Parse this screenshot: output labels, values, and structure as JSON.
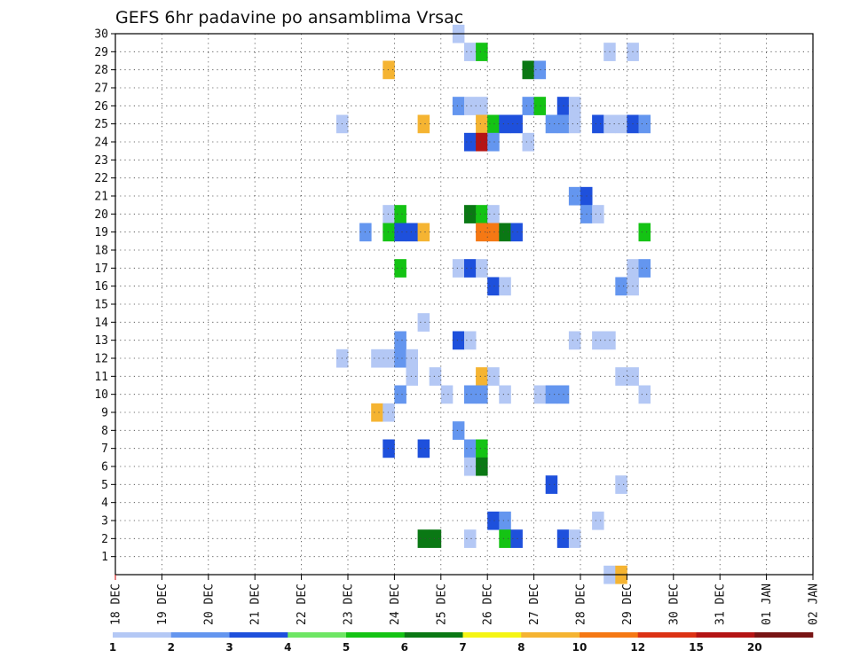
{
  "chart_data": {
    "type": "heatmap",
    "title": "GEFS 6hr padavine po ansamblima Vrsac",
    "xlabel": "",
    "ylabel": "",
    "x_ticks": [
      "18 DEC",
      "19 DEC",
      "20 DEC",
      "21 DEC",
      "22 DEC",
      "23 DEC",
      "24 DEC",
      "25 DEC",
      "26 DEC",
      "27 DEC",
      "28 DEC",
      "29 DEC",
      "30 DEC",
      "31 DEC",
      "01 JAN",
      "02 JAN"
    ],
    "y_ticks": [
      "1",
      "2",
      "3",
      "4",
      "5",
      "6",
      "7",
      "8",
      "9",
      "10",
      "11",
      "12",
      "13",
      "14",
      "15",
      "16",
      "17",
      "18",
      "19",
      "20",
      "21",
      "22",
      "23",
      "24",
      "25",
      "26",
      "27",
      "28",
      "29",
      "30"
    ],
    "ylim": [
      0,
      30
    ],
    "grid": true,
    "colorbar": {
      "labels": [
        "1",
        "2",
        "3",
        "4",
        "5",
        "6",
        "7",
        "8",
        "10",
        "12",
        "15",
        "20"
      ],
      "colors": [
        "#b4c8f5",
        "#6496ef",
        "#1e50dc",
        "#6ee664",
        "#14c314",
        "#0a7814",
        "#f5f514",
        "#f5b432",
        "#f57814",
        "#dc3214",
        "#b41414",
        "#781414"
      ]
    },
    "cell_legend": "cells: [day offset from 18 DEC (6h steps of 0.25), member, precipitation]",
    "cells": [
      [
        7.25,
        30,
        1.5
      ],
      [
        7.5,
        29,
        1.5
      ],
      [
        7.75,
        29,
        5
      ],
      [
        10.5,
        29,
        1.5
      ],
      [
        11,
        29,
        1.5
      ],
      [
        5.75,
        28,
        8
      ],
      [
        8.75,
        28,
        6
      ],
      [
        9,
        28,
        2
      ],
      [
        7.25,
        26,
        2
      ],
      [
        7.5,
        26,
        1.5
      ],
      [
        7.75,
        26,
        1.5
      ],
      [
        8.75,
        26,
        2
      ],
      [
        9,
        26,
        5
      ],
      [
        9.5,
        26,
        3
      ],
      [
        9.75,
        26,
        1.5
      ],
      [
        4.75,
        25,
        1.5
      ],
      [
        6.5,
        25,
        8
      ],
      [
        7.75,
        25,
        8
      ],
      [
        8,
        25,
        5
      ],
      [
        8.25,
        25,
        3
      ],
      [
        8.5,
        25,
        3
      ],
      [
        9.25,
        25,
        2
      ],
      [
        9.5,
        25,
        2
      ],
      [
        9.75,
        25,
        1.5
      ],
      [
        10.25,
        25,
        3
      ],
      [
        10.5,
        25,
        1.5
      ],
      [
        10.75,
        25,
        1.5
      ],
      [
        11,
        25,
        3
      ],
      [
        11.25,
        25,
        2
      ],
      [
        7.5,
        24,
        3
      ],
      [
        7.75,
        24,
        15
      ],
      [
        8,
        24,
        2
      ],
      [
        8.75,
        24,
        1.5
      ],
      [
        9.75,
        21,
        2
      ],
      [
        10,
        21,
        3
      ],
      [
        5.75,
        20,
        1.5
      ],
      [
        6,
        20,
        5
      ],
      [
        7.5,
        20,
        6
      ],
      [
        7.75,
        20,
        5
      ],
      [
        8,
        20,
        1.5
      ],
      [
        10,
        20,
        2
      ],
      [
        10.25,
        20,
        1.5
      ],
      [
        5.25,
        19,
        2
      ],
      [
        5.75,
        19,
        5
      ],
      [
        6,
        19,
        3
      ],
      [
        6.25,
        19,
        3
      ],
      [
        6.5,
        19,
        8
      ],
      [
        7.75,
        19,
        10
      ],
      [
        8,
        19,
        10
      ],
      [
        8.25,
        19,
        6
      ],
      [
        8.5,
        19,
        3
      ],
      [
        11.25,
        19,
        5
      ],
      [
        6,
        17,
        5
      ],
      [
        7.25,
        17,
        1.5
      ],
      [
        7.5,
        17,
        3
      ],
      [
        7.75,
        17,
        1.5
      ],
      [
        11,
        17,
        1.5
      ],
      [
        11.25,
        17,
        2
      ],
      [
        8,
        16,
        3
      ],
      [
        8.25,
        16,
        1.5
      ],
      [
        10.75,
        16,
        2
      ],
      [
        11,
        16,
        1.5
      ],
      [
        6.5,
        14,
        1.5
      ],
      [
        6,
        13,
        2
      ],
      [
        7.25,
        13,
        3
      ],
      [
        7.5,
        13,
        1.5
      ],
      [
        9.75,
        13,
        1.5
      ],
      [
        10.25,
        13,
        1.5
      ],
      [
        10.5,
        13,
        1.5
      ],
      [
        4.75,
        12,
        1.5
      ],
      [
        5.5,
        12,
        1.5
      ],
      [
        5.75,
        12,
        1.5
      ],
      [
        6,
        12,
        2
      ],
      [
        6.25,
        12,
        1.5
      ],
      [
        6.25,
        11,
        1.5
      ],
      [
        6.75,
        11,
        1.5
      ],
      [
        7.75,
        11,
        8
      ],
      [
        8,
        11,
        1.5
      ],
      [
        10.75,
        11,
        1.5
      ],
      [
        11,
        11,
        1.5
      ],
      [
        6,
        10,
        2
      ],
      [
        7,
        10,
        1.5
      ],
      [
        7.5,
        10,
        2
      ],
      [
        7.75,
        10,
        2
      ],
      [
        8.25,
        10,
        1.5
      ],
      [
        9,
        10,
        1.5
      ],
      [
        9.25,
        10,
        2
      ],
      [
        9.5,
        10,
        2
      ],
      [
        11.25,
        10,
        1.5
      ],
      [
        5.5,
        9,
        8
      ],
      [
        5.75,
        9,
        1.5
      ],
      [
        7.25,
        8,
        2
      ],
      [
        5.75,
        7,
        3
      ],
      [
        6.5,
        7,
        3
      ],
      [
        7.5,
        7,
        2
      ],
      [
        7.75,
        7,
        5
      ],
      [
        7.5,
        6,
        1.5
      ],
      [
        7.75,
        6,
        6
      ],
      [
        9.25,
        5,
        3
      ],
      [
        10.75,
        5,
        1.5
      ],
      [
        8,
        3,
        3
      ],
      [
        8.25,
        3,
        2
      ],
      [
        10.25,
        3,
        1.5
      ],
      [
        6.5,
        2,
        6
      ],
      [
        6.75,
        2,
        6
      ],
      [
        7.5,
        2,
        1.5
      ],
      [
        8.25,
        2,
        5
      ],
      [
        8.5,
        2,
        3
      ],
      [
        9.5,
        2,
        3
      ],
      [
        9.75,
        2,
        1.5
      ],
      [
        10.5,
        0,
        1.5
      ],
      [
        10.75,
        0,
        9
      ]
    ]
  }
}
